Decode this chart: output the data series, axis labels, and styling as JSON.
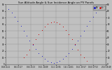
{
  "title": "Sun Altitude Angle & Sun Incidence Angle on PV Panels",
  "legend_blue": "Alt",
  "legend_red": "Inc",
  "bg_color": "#c0c0c0",
  "plot_bg": "#c0c0c0",
  "border_color": "#808080",
  "blue_color": "#0000cc",
  "red_color": "#cc0000",
  "grid_color": "#888888",
  "ylim": [
    0,
    90
  ],
  "xlim": [
    0,
    1
  ],
  "blue_x": [
    0.0,
    0.03,
    0.06,
    0.09,
    0.12,
    0.15,
    0.18,
    0.21,
    0.24,
    0.27,
    0.3,
    0.33,
    0.36,
    0.39,
    0.42,
    0.45,
    0.48,
    0.51,
    0.54,
    0.57,
    0.6,
    0.63,
    0.66,
    0.69,
    0.72,
    0.75,
    0.78,
    0.81,
    0.84,
    0.87,
    0.9,
    0.93,
    0.96,
    1.0
  ],
  "blue_y": [
    87,
    83,
    78,
    72,
    65,
    58,
    50,
    43,
    36,
    29,
    23,
    17,
    12,
    8,
    5,
    3,
    2,
    3,
    5,
    8,
    12,
    17,
    23,
    29,
    36,
    43,
    50,
    58,
    65,
    72,
    78,
    83,
    87,
    90
  ],
  "red_x": [
    0.18,
    0.21,
    0.24,
    0.27,
    0.3,
    0.33,
    0.36,
    0.39,
    0.42,
    0.45,
    0.48,
    0.51,
    0.54,
    0.57,
    0.6,
    0.63,
    0.66,
    0.69,
    0.72,
    0.75,
    0.78,
    0.81,
    0.78,
    0.75,
    0.72,
    0.69,
    0.66,
    0.63,
    0.6,
    0.57,
    0.54,
    0.51,
    0.48,
    0.45,
    0.42,
    0.39,
    0.36,
    0.33,
    0.3,
    0.27,
    0.24,
    0.21,
    0.18
  ],
  "red_y": [
    10,
    15,
    22,
    30,
    38,
    45,
    52,
    57,
    61,
    63,
    64,
    63,
    61,
    57,
    52,
    45,
    38,
    30,
    22,
    15,
    10,
    5,
    10,
    15,
    22,
    30,
    38,
    45,
    52,
    57,
    61,
    63,
    64,
    63,
    61,
    57,
    52,
    45,
    38,
    30,
    22,
    15,
    10
  ],
  "xtick_labels": [
    "04:E 4:21",
    "06:1 6:17",
    "08:1 8:13",
    "10:1 10:09",
    "12:1 12:05",
    "14:1 14:01",
    "16:1 15:57",
    "18:0 17:53",
    "20:0 19:49"
  ],
  "ytick_labels_left": [
    "0",
    "10",
    "20",
    "30",
    "40",
    "50",
    "60",
    "70",
    "80",
    "90"
  ],
  "ytick_labels_right": [
    "0",
    "10",
    "20",
    "30",
    "40",
    "50",
    "60",
    "70",
    "80",
    "90"
  ]
}
